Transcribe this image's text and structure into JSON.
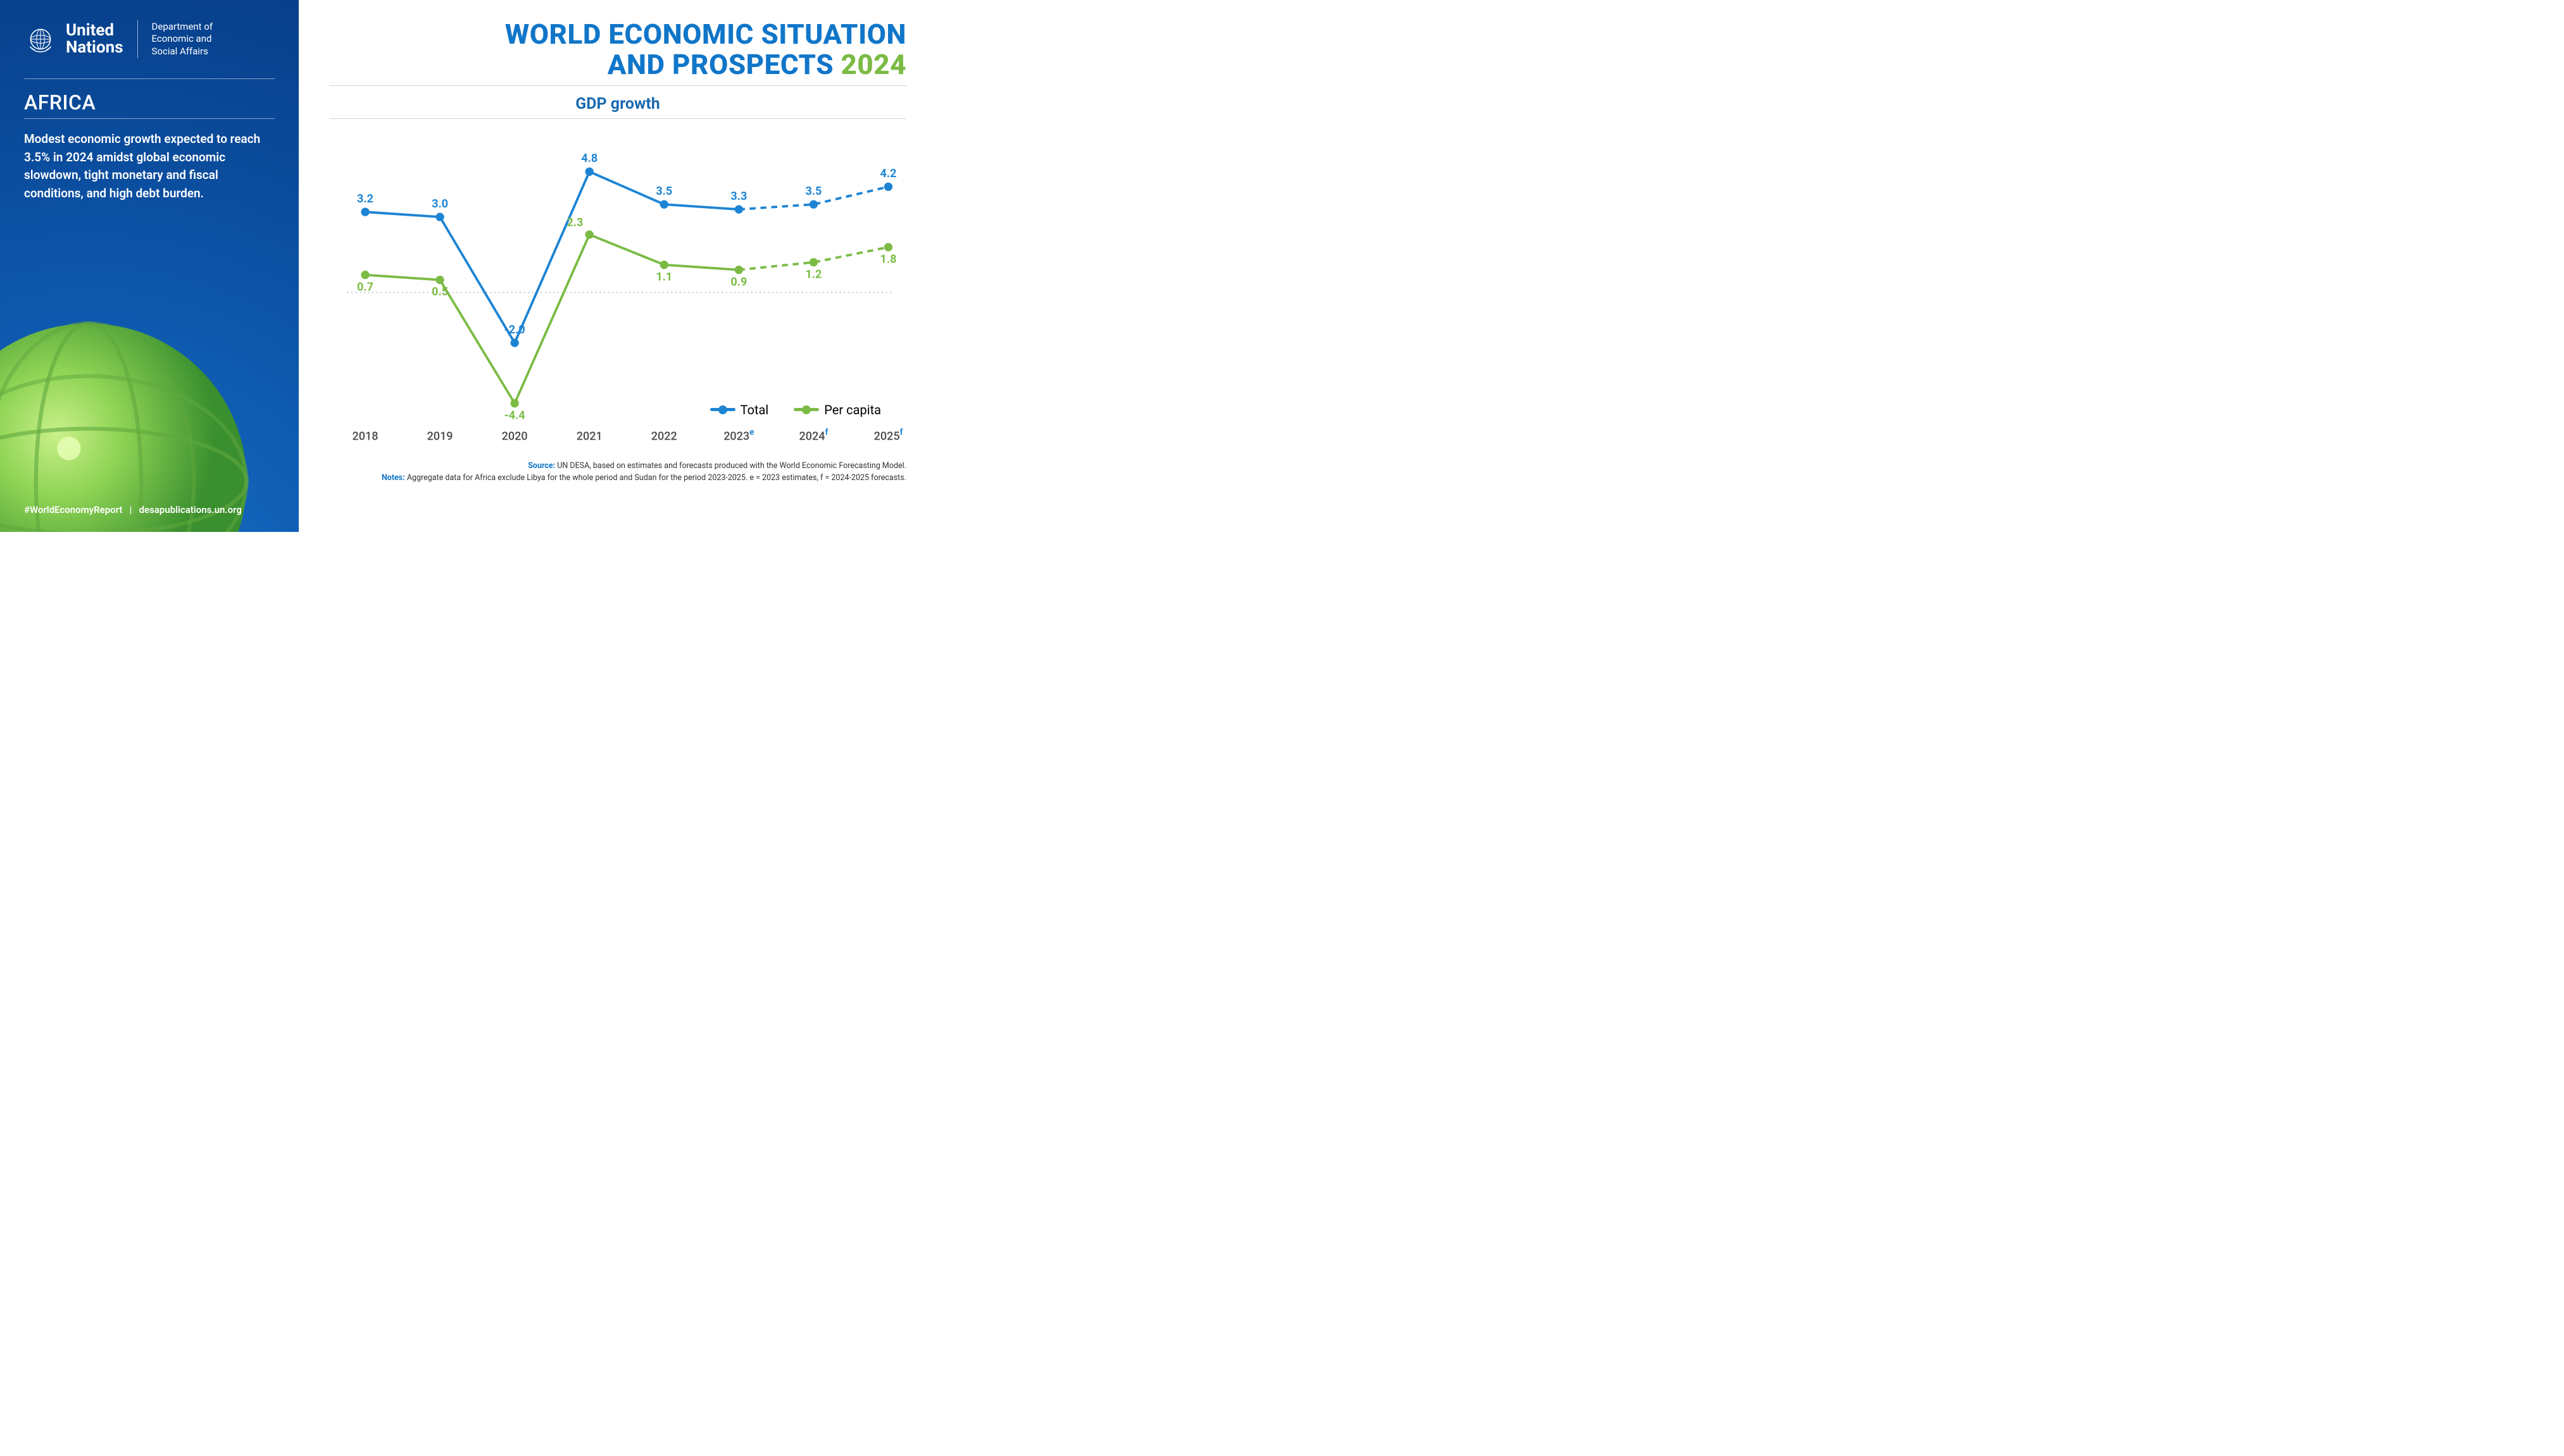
{
  "sidebar": {
    "org_line1": "United",
    "org_line2": "Nations",
    "dept_line1": "Department of",
    "dept_line2": "Economic and",
    "dept_line3": "Social Affairs",
    "region": "AFRICA",
    "summary": "Modest economic growth expected to reach 3.5% in 2024 amidst global economic slowdown, tight monetary and fiscal conditions, and high debt burden.",
    "hashtag": "#WorldEconomyReport",
    "sep": "|",
    "url": "desapublications.un.org"
  },
  "main": {
    "title_l1": "WORLD ECONOMIC SITUATION",
    "title_l2a": "AND PROSPECTS ",
    "title_l2b": "2024",
    "chart_title": "GDP growth",
    "source_label": "Source:",
    "source_text": " UN DESA, based on estimates and forecasts produced with the World Economic Forecasting Model.",
    "notes_label": "Notes:",
    "notes_text": " Aggregate data for Africa exclude Libya for the whole period and Sudan for the period 2023-2025. e = 2023 estimates, f = 2024-2025 forecasts."
  },
  "chart": {
    "type": "line",
    "years": [
      "2018",
      "2019",
      "2020",
      "2021",
      "2022",
      "2023",
      "2024",
      "2025"
    ],
    "year_suffix": [
      "",
      "",
      "",
      "",
      "",
      "e",
      "f",
      "f"
    ],
    "series": [
      {
        "name": "Total",
        "color": "#1d84d4",
        "values": [
          3.2,
          3.0,
          -2.0,
          4.8,
          3.5,
          3.3,
          3.5,
          4.2
        ]
      },
      {
        "name": "Per capita",
        "color": "#7bbb44",
        "values": [
          0.7,
          0.5,
          -4.4,
          2.3,
          1.1,
          0.9,
          1.2,
          1.8
        ]
      }
    ],
    "forecast_start_index": 5,
    "y_min": -5.0,
    "y_max": 5.5,
    "zero_line_color": "#b9c4d0",
    "background": "#ffffff",
    "line_width": 4,
    "marker_radius": 7,
    "label_fontsize": 19,
    "axis_fontsize": 19,
    "dash_pattern": "10 8"
  },
  "legend": {
    "total": "Total",
    "per_capita": "Per capita"
  },
  "colors": {
    "sidebar_bg": "#0b58a9",
    "blue": "#1d84d4",
    "green": "#7bbb44",
    "text_blue": "#1a6ab0"
  }
}
